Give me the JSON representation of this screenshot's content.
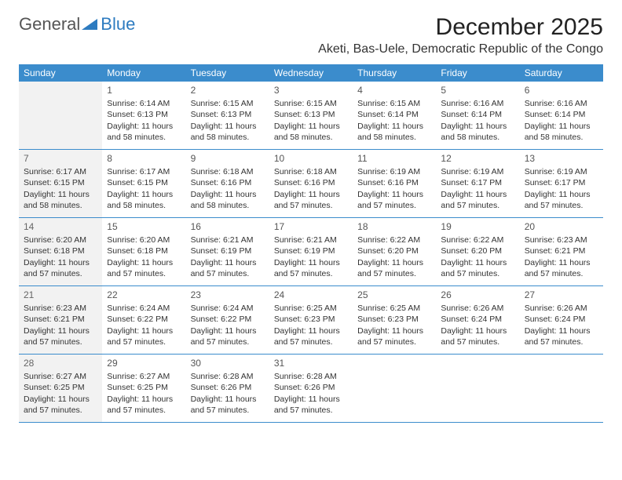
{
  "logo": {
    "text1": "General",
    "text2": "Blue"
  },
  "header": {
    "month_title": "December 2025",
    "location": "Aketi, Bas-Uele, Democratic Republic of the Congo"
  },
  "colors": {
    "header_bg": "#3b8ccc",
    "header_fg": "#ffffff",
    "shaded_bg": "#f2f2f2",
    "border": "#3b8ccc",
    "logo_gray": "#555555",
    "logo_blue": "#2d7bc0"
  },
  "weekdays": [
    "Sunday",
    "Monday",
    "Tuesday",
    "Wednesday",
    "Thursday",
    "Friday",
    "Saturday"
  ],
  "weeks": [
    [
      {
        "day": "",
        "lines": []
      },
      {
        "day": "1",
        "lines": [
          "Sunrise: 6:14 AM",
          "Sunset: 6:13 PM",
          "Daylight: 11 hours",
          "and 58 minutes."
        ]
      },
      {
        "day": "2",
        "lines": [
          "Sunrise: 6:15 AM",
          "Sunset: 6:13 PM",
          "Daylight: 11 hours",
          "and 58 minutes."
        ]
      },
      {
        "day": "3",
        "lines": [
          "Sunrise: 6:15 AM",
          "Sunset: 6:13 PM",
          "Daylight: 11 hours",
          "and 58 minutes."
        ]
      },
      {
        "day": "4",
        "lines": [
          "Sunrise: 6:15 AM",
          "Sunset: 6:14 PM",
          "Daylight: 11 hours",
          "and 58 minutes."
        ]
      },
      {
        "day": "5",
        "lines": [
          "Sunrise: 6:16 AM",
          "Sunset: 6:14 PM",
          "Daylight: 11 hours",
          "and 58 minutes."
        ]
      },
      {
        "day": "6",
        "lines": [
          "Sunrise: 6:16 AM",
          "Sunset: 6:14 PM",
          "Daylight: 11 hours",
          "and 58 minutes."
        ]
      }
    ],
    [
      {
        "day": "7",
        "lines": [
          "Sunrise: 6:17 AM",
          "Sunset: 6:15 PM",
          "Daylight: 11 hours",
          "and 58 minutes."
        ]
      },
      {
        "day": "8",
        "lines": [
          "Sunrise: 6:17 AM",
          "Sunset: 6:15 PM",
          "Daylight: 11 hours",
          "and 58 minutes."
        ]
      },
      {
        "day": "9",
        "lines": [
          "Sunrise: 6:18 AM",
          "Sunset: 6:16 PM",
          "Daylight: 11 hours",
          "and 58 minutes."
        ]
      },
      {
        "day": "10",
        "lines": [
          "Sunrise: 6:18 AM",
          "Sunset: 6:16 PM",
          "Daylight: 11 hours",
          "and 57 minutes."
        ]
      },
      {
        "day": "11",
        "lines": [
          "Sunrise: 6:19 AM",
          "Sunset: 6:16 PM",
          "Daylight: 11 hours",
          "and 57 minutes."
        ]
      },
      {
        "day": "12",
        "lines": [
          "Sunrise: 6:19 AM",
          "Sunset: 6:17 PM",
          "Daylight: 11 hours",
          "and 57 minutes."
        ]
      },
      {
        "day": "13",
        "lines": [
          "Sunrise: 6:19 AM",
          "Sunset: 6:17 PM",
          "Daylight: 11 hours",
          "and 57 minutes."
        ]
      }
    ],
    [
      {
        "day": "14",
        "lines": [
          "Sunrise: 6:20 AM",
          "Sunset: 6:18 PM",
          "Daylight: 11 hours",
          "and 57 minutes."
        ]
      },
      {
        "day": "15",
        "lines": [
          "Sunrise: 6:20 AM",
          "Sunset: 6:18 PM",
          "Daylight: 11 hours",
          "and 57 minutes."
        ]
      },
      {
        "day": "16",
        "lines": [
          "Sunrise: 6:21 AM",
          "Sunset: 6:19 PM",
          "Daylight: 11 hours",
          "and 57 minutes."
        ]
      },
      {
        "day": "17",
        "lines": [
          "Sunrise: 6:21 AM",
          "Sunset: 6:19 PM",
          "Daylight: 11 hours",
          "and 57 minutes."
        ]
      },
      {
        "day": "18",
        "lines": [
          "Sunrise: 6:22 AM",
          "Sunset: 6:20 PM",
          "Daylight: 11 hours",
          "and 57 minutes."
        ]
      },
      {
        "day": "19",
        "lines": [
          "Sunrise: 6:22 AM",
          "Sunset: 6:20 PM",
          "Daylight: 11 hours",
          "and 57 minutes."
        ]
      },
      {
        "day": "20",
        "lines": [
          "Sunrise: 6:23 AM",
          "Sunset: 6:21 PM",
          "Daylight: 11 hours",
          "and 57 minutes."
        ]
      }
    ],
    [
      {
        "day": "21",
        "lines": [
          "Sunrise: 6:23 AM",
          "Sunset: 6:21 PM",
          "Daylight: 11 hours",
          "and 57 minutes."
        ]
      },
      {
        "day": "22",
        "lines": [
          "Sunrise: 6:24 AM",
          "Sunset: 6:22 PM",
          "Daylight: 11 hours",
          "and 57 minutes."
        ]
      },
      {
        "day": "23",
        "lines": [
          "Sunrise: 6:24 AM",
          "Sunset: 6:22 PM",
          "Daylight: 11 hours",
          "and 57 minutes."
        ]
      },
      {
        "day": "24",
        "lines": [
          "Sunrise: 6:25 AM",
          "Sunset: 6:23 PM",
          "Daylight: 11 hours",
          "and 57 minutes."
        ]
      },
      {
        "day": "25",
        "lines": [
          "Sunrise: 6:25 AM",
          "Sunset: 6:23 PM",
          "Daylight: 11 hours",
          "and 57 minutes."
        ]
      },
      {
        "day": "26",
        "lines": [
          "Sunrise: 6:26 AM",
          "Sunset: 6:24 PM",
          "Daylight: 11 hours",
          "and 57 minutes."
        ]
      },
      {
        "day": "27",
        "lines": [
          "Sunrise: 6:26 AM",
          "Sunset: 6:24 PM",
          "Daylight: 11 hours",
          "and 57 minutes."
        ]
      }
    ],
    [
      {
        "day": "28",
        "lines": [
          "Sunrise: 6:27 AM",
          "Sunset: 6:25 PM",
          "Daylight: 11 hours",
          "and 57 minutes."
        ]
      },
      {
        "day": "29",
        "lines": [
          "Sunrise: 6:27 AM",
          "Sunset: 6:25 PM",
          "Daylight: 11 hours",
          "and 57 minutes."
        ]
      },
      {
        "day": "30",
        "lines": [
          "Sunrise: 6:28 AM",
          "Sunset: 6:26 PM",
          "Daylight: 11 hours",
          "and 57 minutes."
        ]
      },
      {
        "day": "31",
        "lines": [
          "Sunrise: 6:28 AM",
          "Sunset: 6:26 PM",
          "Daylight: 11 hours",
          "and 57 minutes."
        ]
      },
      {
        "day": "",
        "lines": []
      },
      {
        "day": "",
        "lines": []
      },
      {
        "day": "",
        "lines": []
      }
    ]
  ]
}
